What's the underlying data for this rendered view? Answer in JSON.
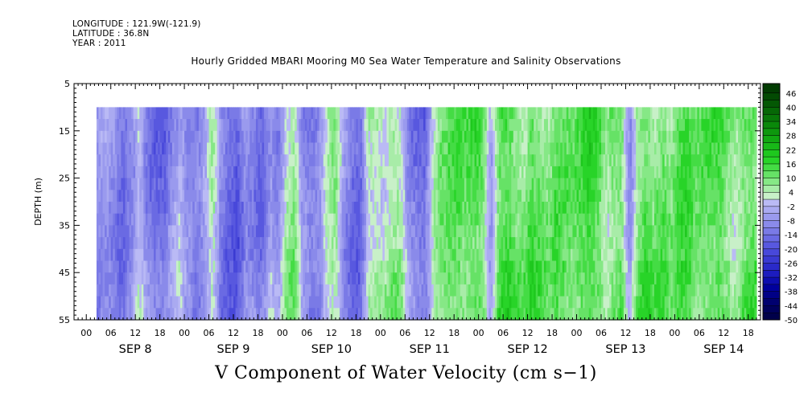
{
  "header": {
    "longitude": "LONGITUDE : 121.9W(-121.9)",
    "latitude": "LATITUDE : 36.8N",
    "year": "YEAR : 2011",
    "title": "Hourly Gridded MBARI Mooring M0 Sea Water Temperature and Salinity Observations"
  },
  "chart_data": {
    "type": "heatmap",
    "title": "Hourly Gridded MBARI Mooring M0 Sea Water Temperature and Salinity Observations",
    "caption": "V Component of Water Velocity (cm s−1)",
    "ylabel": "DEPTH (m)",
    "y_ticks": [
      5,
      15,
      25,
      35,
      45,
      55
    ],
    "ylim": [
      5,
      55
    ],
    "y_inverted": true,
    "data_depth_range": [
      10,
      55
    ],
    "x_hour_labels": [
      "00",
      "06",
      "12",
      "18"
    ],
    "x_days": [
      {
        "label": "SEP  8",
        "start_hour": 0
      },
      {
        "label": "SEP  9",
        "start_hour": 24
      },
      {
        "label": "SEP 10",
        "start_hour": 48
      },
      {
        "label": "SEP 11",
        "start_hour": 72
      },
      {
        "label": "SEP 12",
        "start_hour": 96
      },
      {
        "label": "SEP 13",
        "start_hour": 120
      },
      {
        "label": "SEP 14",
        "start_hour": 144
      }
    ],
    "xlim_hours": [
      -3,
      165
    ],
    "data_start_hour": 2.5,
    "colorbar": {
      "min": -50,
      "max": 50,
      "labels": [
        46,
        40,
        34,
        28,
        22,
        16,
        10,
        4,
        -2,
        -8,
        -14,
        -20,
        -26,
        -32,
        -38,
        -44,
        -50
      ],
      "bounds": [
        -50,
        -47,
        -44,
        -41,
        -38,
        -35,
        -32,
        -29,
        -26,
        -23,
        -20,
        -17,
        -14,
        -11,
        -8,
        -5,
        -2,
        1,
        4,
        7,
        10,
        13,
        16,
        19,
        22,
        25,
        28,
        31,
        34,
        37,
        40,
        43,
        46,
        50
      ],
      "colors": [
        "#00004a",
        "#00005c",
        "#00006f",
        "#000086",
        "#00009c",
        "#0d0daf",
        "#1c1cbf",
        "#2a2ac9",
        "#3a3ad2",
        "#4848da",
        "#5858df",
        "#6a6ae3",
        "#7a7ae6",
        "#8a8aea",
        "#9a9aee",
        "#aaaaf1",
        "#babaf5",
        "#c8f0c8",
        "#a8eca8",
        "#86e886",
        "#66e266",
        "#44dc44",
        "#28d428",
        "#1ec81e",
        "#18b818",
        "#12a812",
        "#0e980e",
        "#0a880a",
        "#087808",
        "#066806",
        "#045804",
        "#034a03",
        "#023c02"
      ]
    },
    "v_by_day": [
      {
        "day": "SEP 8",
        "v": [
          -12,
          -10,
          -6,
          -10,
          -14,
          -8,
          2,
          -10,
          -14,
          -16,
          -8,
          -4,
          -12
        ]
      },
      {
        "day": "SEP 9",
        "v": [
          -10,
          -14,
          -8,
          4,
          -12,
          -16,
          -18,
          -6,
          -10,
          -14,
          -4,
          -10
        ]
      },
      {
        "day": "SEP 10",
        "v": [
          4,
          8,
          -10,
          -14,
          -12,
          2,
          6,
          -8,
          -14,
          -16,
          4,
          6
        ]
      },
      {
        "day": "SEP 11",
        "v": [
          4,
          8,
          6,
          -10,
          -14,
          -16,
          2,
          8,
          10,
          12,
          10,
          14
        ]
      },
      {
        "day": "SEP 12",
        "v": [
          12,
          -6,
          14,
          16,
          12,
          8,
          14,
          10,
          6,
          12,
          10,
          8
        ]
      },
      {
        "day": "SEP 13",
        "v": [
          12,
          16,
          14,
          6,
          10,
          12,
          -8,
          10,
          14,
          8,
          12,
          6
        ]
      },
      {
        "day": "SEP 14",
        "v": [
          12,
          14,
          8,
          10,
          12,
          14,
          10,
          6,
          12,
          14,
          10,
          -10
        ]
      }
    ]
  }
}
